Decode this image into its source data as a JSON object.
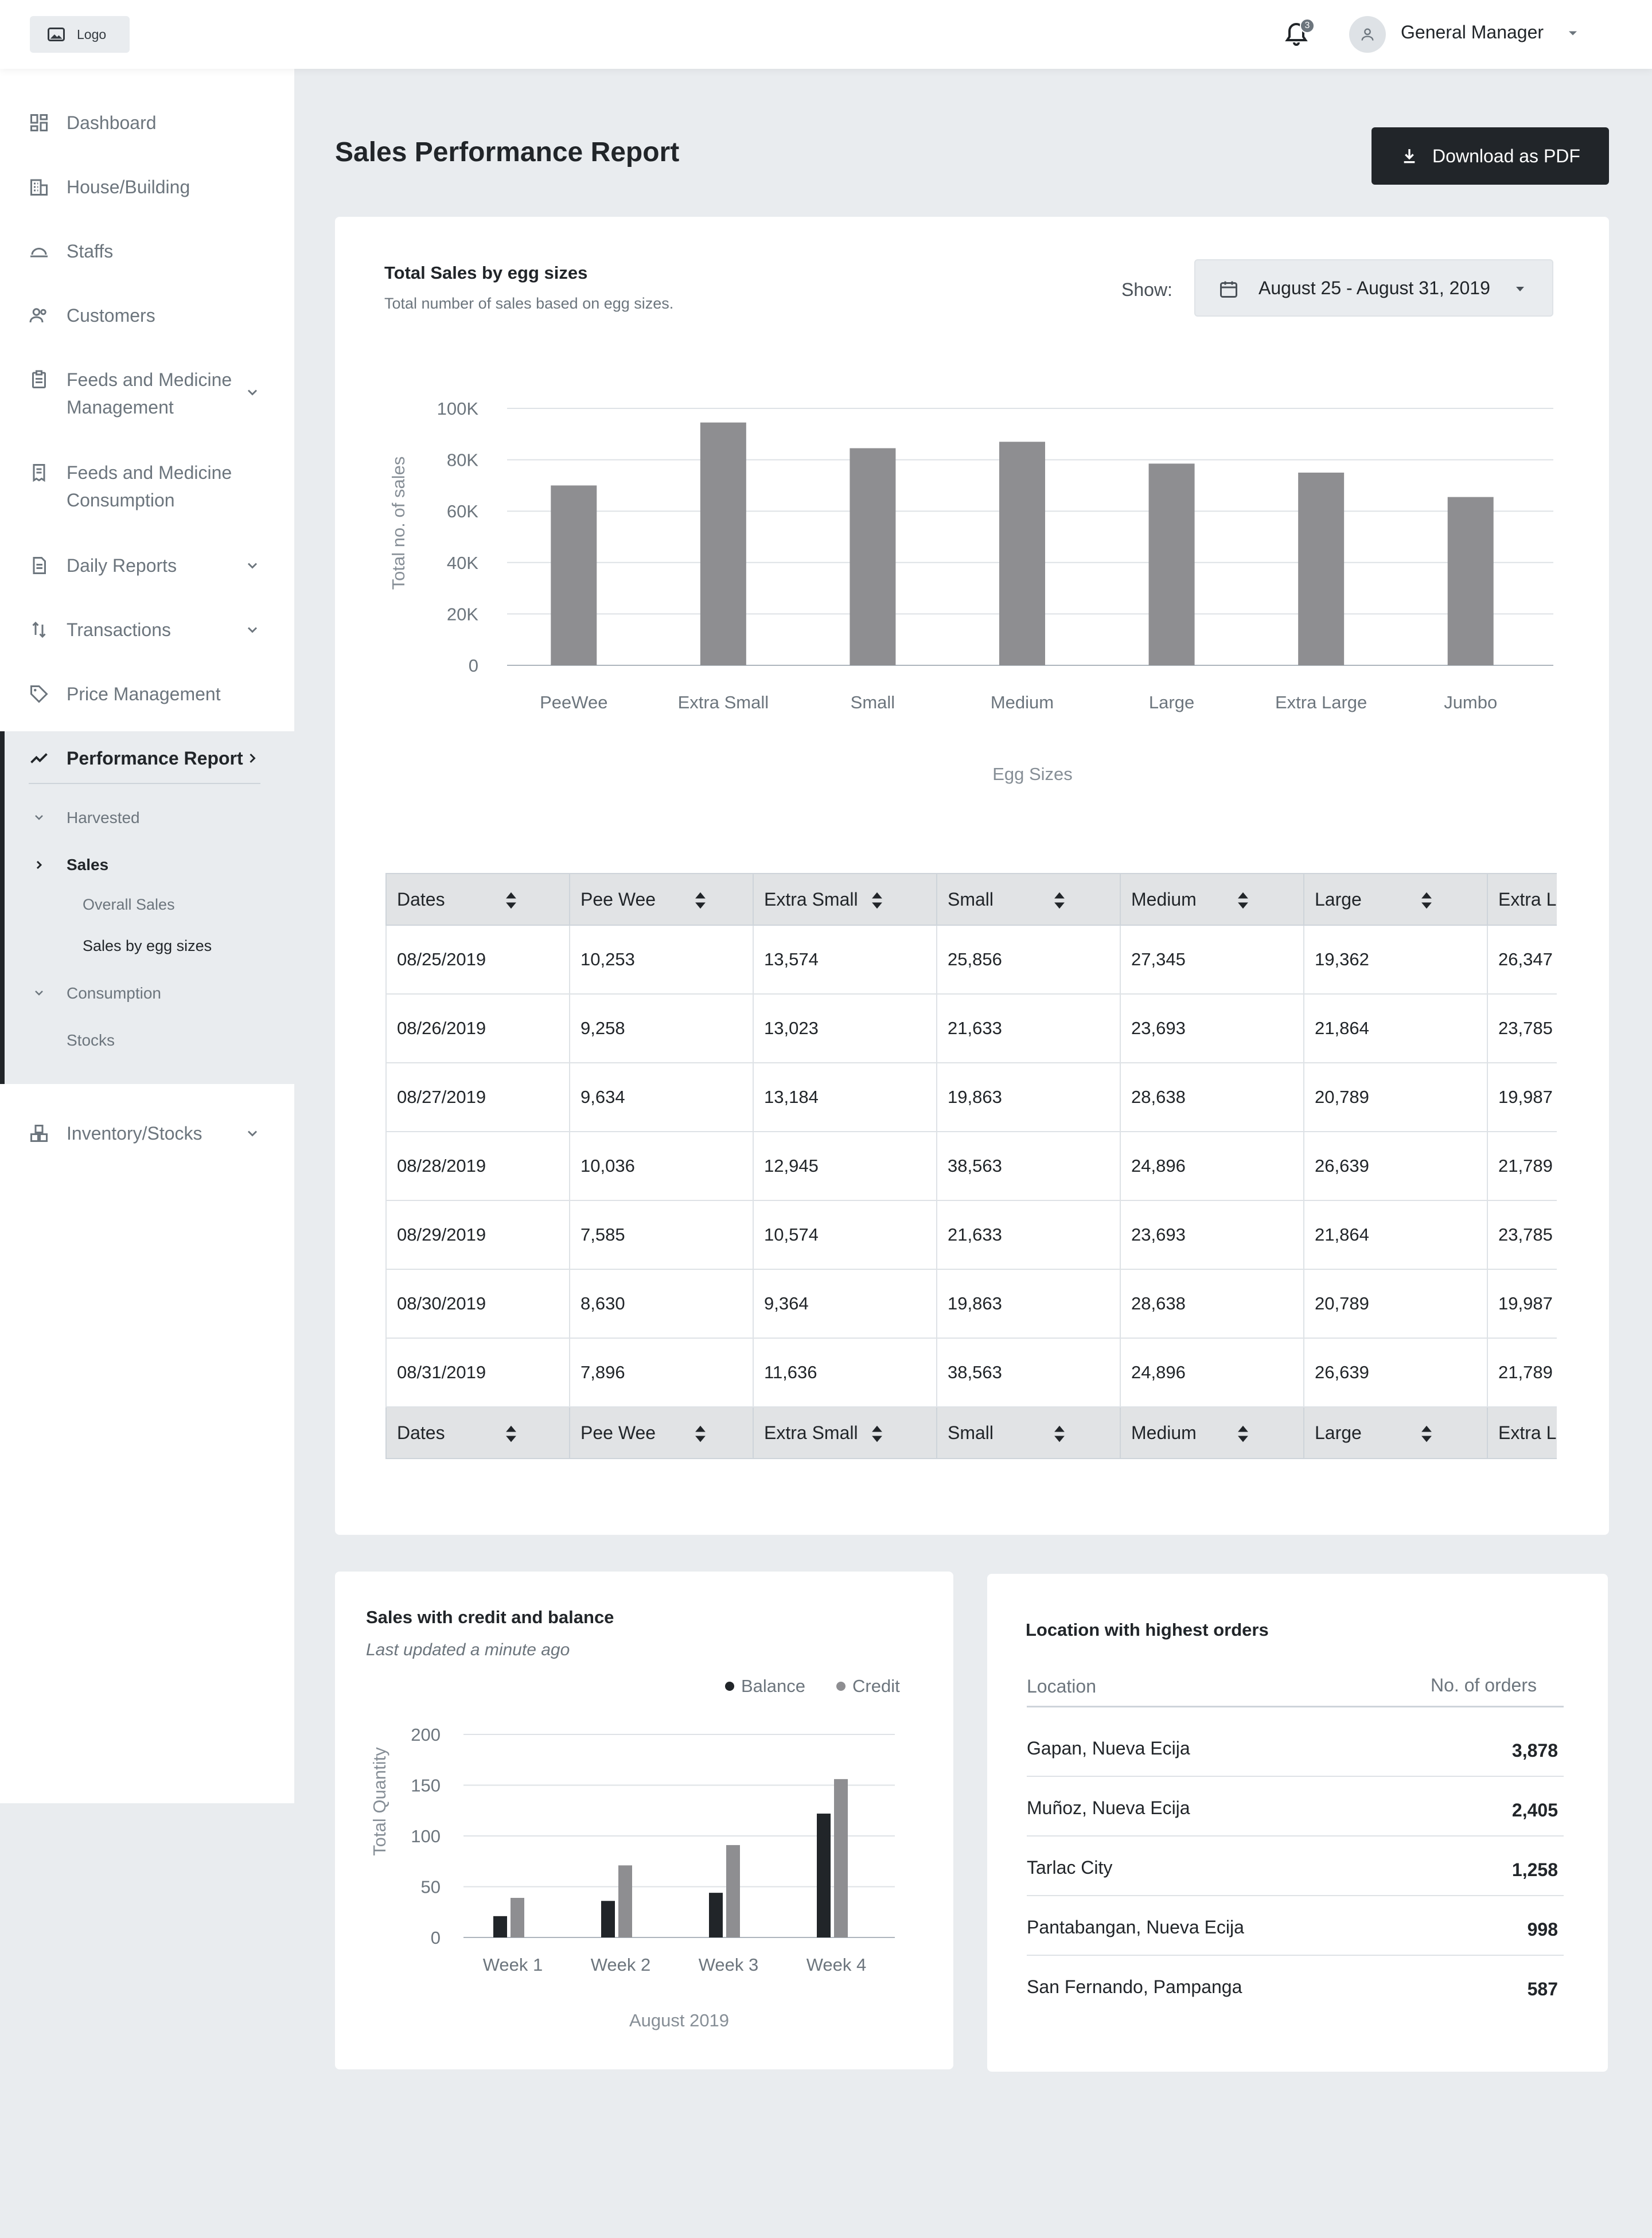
{
  "header": {
    "logo_label": "Logo",
    "notification_count": "3",
    "user_name": "General Manager"
  },
  "sidebar": {
    "items": [
      {
        "label": "Dashboard",
        "icon": "dashboard-icon"
      },
      {
        "label": "House/Building",
        "icon": "building-icon"
      },
      {
        "label": "Staffs",
        "icon": "staff-icon"
      },
      {
        "label": "Customers",
        "icon": "customers-icon"
      },
      {
        "label": "Feeds and Medicine Management",
        "icon": "clipboard-icon"
      },
      {
        "label": "Feeds and Medicine Consumption",
        "icon": "receipt-icon"
      },
      {
        "label": "Daily Reports",
        "icon": "document-icon"
      },
      {
        "label": "Transactions",
        "icon": "transfer-icon"
      },
      {
        "label": "Price Management",
        "icon": "tag-icon"
      },
      {
        "label": "Performance Report",
        "icon": "trend-icon"
      },
      {
        "label": "Inventory/Stocks",
        "icon": "inventory-icon"
      }
    ],
    "performance_sub": {
      "harvested": "Harvested",
      "sales": "Sales",
      "overall_sales": "Overall Sales",
      "sales_by_egg_sizes": "Sales by egg sizes",
      "consumption": "Consumption",
      "stocks": "Stocks"
    }
  },
  "main": {
    "page_title": "Sales Performance Report",
    "download_label": "Download as PDF"
  },
  "egg_card": {
    "title": "Total Sales by egg sizes",
    "subtitle": "Total number of sales based on egg sizes.",
    "show_label": "Show:",
    "date_range": "August 25 - August 31, 2019"
  },
  "table": {
    "headers": [
      "Dates",
      "Pee Wee",
      "Extra Small",
      "Small",
      "Medium",
      "Large",
      "Extra Large"
    ],
    "rows": [
      [
        "08/25/2019",
        "10,253",
        "13,574",
        "25,856",
        "27,345",
        "19,362",
        "26,347"
      ],
      [
        "08/26/2019",
        "9,258",
        "13,023",
        "21,633",
        "23,693",
        "21,864",
        "23,785"
      ],
      [
        "08/27/2019",
        "9,634",
        "13,184",
        "19,863",
        "28,638",
        "20,789",
        "19,987"
      ],
      [
        "08/28/2019",
        "10,036",
        "12,945",
        "38,563",
        "24,896",
        "26,639",
        "21,789"
      ],
      [
        "08/29/2019",
        "7,585",
        "10,574",
        "21,633",
        "23,693",
        "21,864",
        "23,785"
      ],
      [
        "08/30/2019",
        "8,630",
        "9,364",
        "19,863",
        "28,638",
        "20,789",
        "19,987"
      ],
      [
        "08/31/2019",
        "7,896",
        "11,636",
        "38,563",
        "24,896",
        "26,639",
        "21,789"
      ]
    ]
  },
  "credit_card": {
    "title": "Sales with credit and balance",
    "subtitle": "Last updated a minute ago"
  },
  "location_card": {
    "title": "Location with highest orders",
    "col_location": "Location",
    "col_orders": "No. of orders",
    "rows": [
      {
        "name": "Gapan, Nueva Ecija",
        "orders": "3,878"
      },
      {
        "name": "Muñoz, Nueva Ecija",
        "orders": "2,405"
      },
      {
        "name": "Tarlac City",
        "orders": "1,258"
      },
      {
        "name": "Pantabangan, Nueva Ecija",
        "orders": "998"
      },
      {
        "name": "San Fernando, Pampanga",
        "orders": "587"
      }
    ]
  },
  "colors": {
    "bar": "#8e8e91",
    "balance": "#212529",
    "credit": "#8e8e91",
    "accent": "#212529"
  },
  "chart_data": [
    {
      "type": "bar",
      "categories": [
        "PeeWee",
        "Extra Small",
        "Small",
        "Medium",
        "Large",
        "Extra Large",
        "Jumbo"
      ],
      "values": [
        70000,
        94500,
        84500,
        87000,
        78500,
        75000,
        65500
      ],
      "xlabel": "Egg Sizes",
      "ylabel": "Total no. of sales",
      "ylim": [
        0,
        100000
      ],
      "yticks": [
        "0",
        "20K",
        "40K",
        "60K",
        "80K",
        "100K"
      ],
      "grid": true
    },
    {
      "type": "bar",
      "categories": [
        "Week 1",
        "Week 2",
        "Week 3",
        "Week 4"
      ],
      "series": [
        {
          "name": "Balance",
          "values": [
            21,
            36,
            44,
            122
          ]
        },
        {
          "name": "Credit",
          "values": [
            39,
            71,
            91,
            156
          ]
        }
      ],
      "xlabel": "August 2019",
      "ylabel": "Total Quantity",
      "ylim": [
        0,
        200
      ],
      "yticks": [
        "0",
        "50",
        "100",
        "150",
        "200"
      ],
      "legend": "top-right",
      "grid": true
    }
  ]
}
